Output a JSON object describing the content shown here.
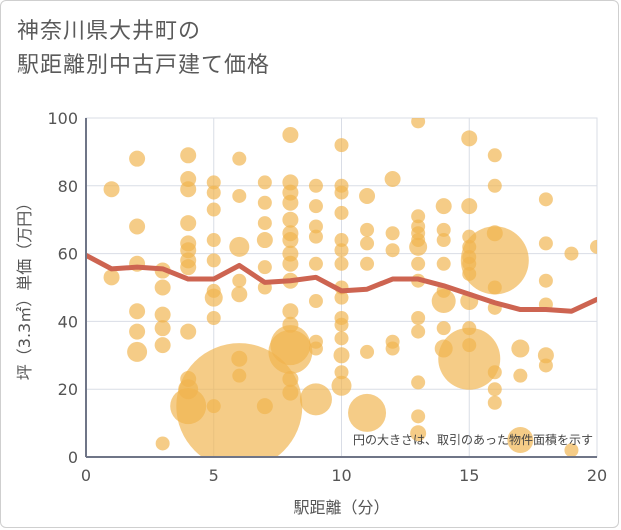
{
  "title_lines": [
    "神奈川県大井町の",
    "駅距離別中古戸建て価格"
  ],
  "note": "円の大きさは、取引のあった物件面積を示す",
  "colors": {
    "bubble": "#f0b44e",
    "line": "#cd6451",
    "grid": "#d9dde6",
    "axis": "#6f7587"
  },
  "chart_data": {
    "type": "scatter",
    "title": "神奈川県大井町の駅距離別中古戸建て価格",
    "xlabel": "駅距離（分）",
    "ylabel": "坪（3.3㎡）単価（万円）",
    "xlim": [
      0,
      20
    ],
    "ylim": [
      0,
      100
    ],
    "xticks": [
      0,
      5,
      10,
      15,
      20
    ],
    "yticks": [
      0,
      20,
      40,
      60,
      80,
      100
    ],
    "grid": true,
    "bubbles": [
      {
        "x": 1,
        "y": 79,
        "r": 8
      },
      {
        "x": 1,
        "y": 53,
        "r": 8
      },
      {
        "x": 2,
        "y": 88,
        "r": 8
      },
      {
        "x": 2,
        "y": 68,
        "r": 8
      },
      {
        "x": 2,
        "y": 57,
        "r": 8
      },
      {
        "x": 2,
        "y": 43,
        "r": 8
      },
      {
        "x": 2,
        "y": 37,
        "r": 8
      },
      {
        "x": 2,
        "y": 31,
        "r": 10
      },
      {
        "x": 3,
        "y": 55,
        "r": 8
      },
      {
        "x": 3,
        "y": 50,
        "r": 8
      },
      {
        "x": 3,
        "y": 42,
        "r": 8
      },
      {
        "x": 3,
        "y": 38,
        "r": 8
      },
      {
        "x": 3,
        "y": 33,
        "r": 8
      },
      {
        "x": 3,
        "y": 4,
        "r": 7
      },
      {
        "x": 4,
        "y": 89,
        "r": 8
      },
      {
        "x": 4,
        "y": 82,
        "r": 8
      },
      {
        "x": 4,
        "y": 79,
        "r": 8
      },
      {
        "x": 4,
        "y": 69,
        "r": 8
      },
      {
        "x": 4,
        "y": 63,
        "r": 8
      },
      {
        "x": 4,
        "y": 61,
        "r": 8
      },
      {
        "x": 4,
        "y": 58,
        "r": 8
      },
      {
        "x": 4,
        "y": 56,
        "r": 8
      },
      {
        "x": 4,
        "y": 37,
        "r": 8
      },
      {
        "x": 4,
        "y": 23,
        "r": 8
      },
      {
        "x": 4,
        "y": 20,
        "r": 10
      },
      {
        "x": 4,
        "y": 15,
        "r": 18
      },
      {
        "x": 5,
        "y": 81,
        "r": 7
      },
      {
        "x": 5,
        "y": 78,
        "r": 7
      },
      {
        "x": 5,
        "y": 73,
        "r": 7
      },
      {
        "x": 5,
        "y": 64,
        "r": 7
      },
      {
        "x": 5,
        "y": 58,
        "r": 7
      },
      {
        "x": 5,
        "y": 49,
        "r": 7
      },
      {
        "x": 5,
        "y": 47,
        "r": 9
      },
      {
        "x": 5,
        "y": 41,
        "r": 7
      },
      {
        "x": 5,
        "y": 15,
        "r": 7
      },
      {
        "x": 6,
        "y": 88,
        "r": 7
      },
      {
        "x": 6,
        "y": 77,
        "r": 7
      },
      {
        "x": 6,
        "y": 62,
        "r": 10
      },
      {
        "x": 6,
        "y": 52,
        "r": 7
      },
      {
        "x": 6,
        "y": 48,
        "r": 8
      },
      {
        "x": 6,
        "y": 29,
        "r": 8
      },
      {
        "x": 6,
        "y": 24,
        "r": 7
      },
      {
        "x": 6,
        "y": 15,
        "r": 63
      },
      {
        "x": 7,
        "y": 81,
        "r": 7
      },
      {
        "x": 7,
        "y": 75,
        "r": 7
      },
      {
        "x": 7,
        "y": 69,
        "r": 7
      },
      {
        "x": 7,
        "y": 64,
        "r": 8
      },
      {
        "x": 7,
        "y": 56,
        "r": 7
      },
      {
        "x": 7,
        "y": 50,
        "r": 7
      },
      {
        "x": 7,
        "y": 15,
        "r": 8
      },
      {
        "x": 8,
        "y": 95,
        "r": 8
      },
      {
        "x": 8,
        "y": 81,
        "r": 8
      },
      {
        "x": 8,
        "y": 78,
        "r": 8
      },
      {
        "x": 8,
        "y": 75,
        "r": 8
      },
      {
        "x": 8,
        "y": 70,
        "r": 8
      },
      {
        "x": 8,
        "y": 66,
        "r": 8
      },
      {
        "x": 8,
        "y": 64,
        "r": 8
      },
      {
        "x": 8,
        "y": 60,
        "r": 8
      },
      {
        "x": 8,
        "y": 57,
        "r": 8
      },
      {
        "x": 8,
        "y": 52,
        "r": 8
      },
      {
        "x": 8,
        "y": 43,
        "r": 8
      },
      {
        "x": 8,
        "y": 39,
        "r": 8
      },
      {
        "x": 8,
        "y": 33,
        "r": 20
      },
      {
        "x": 8,
        "y": 31,
        "r": 22
      },
      {
        "x": 8,
        "y": 23,
        "r": 8
      },
      {
        "x": 8,
        "y": 19,
        "r": 8
      },
      {
        "x": 9,
        "y": 80,
        "r": 7
      },
      {
        "x": 9,
        "y": 74,
        "r": 7
      },
      {
        "x": 9,
        "y": 68,
        "r": 7
      },
      {
        "x": 9,
        "y": 65,
        "r": 7
      },
      {
        "x": 9,
        "y": 57,
        "r": 7
      },
      {
        "x": 9,
        "y": 46,
        "r": 7
      },
      {
        "x": 9,
        "y": 34,
        "r": 7
      },
      {
        "x": 9,
        "y": 32,
        "r": 7
      },
      {
        "x": 9,
        "y": 17,
        "r": 16
      },
      {
        "x": 10,
        "y": 92,
        "r": 7
      },
      {
        "x": 10,
        "y": 80,
        "r": 7
      },
      {
        "x": 10,
        "y": 78,
        "r": 7
      },
      {
        "x": 10,
        "y": 72,
        "r": 7
      },
      {
        "x": 10,
        "y": 64,
        "r": 7
      },
      {
        "x": 10,
        "y": 61,
        "r": 7
      },
      {
        "x": 10,
        "y": 57,
        "r": 7
      },
      {
        "x": 10,
        "y": 50,
        "r": 7
      },
      {
        "x": 10,
        "y": 47,
        "r": 7
      },
      {
        "x": 10,
        "y": 41,
        "r": 7
      },
      {
        "x": 10,
        "y": 39,
        "r": 7
      },
      {
        "x": 10,
        "y": 35,
        "r": 7
      },
      {
        "x": 10,
        "y": 30,
        "r": 8
      },
      {
        "x": 10,
        "y": 25,
        "r": 7
      },
      {
        "x": 10,
        "y": 21,
        "r": 10
      },
      {
        "x": 11,
        "y": 77,
        "r": 8
      },
      {
        "x": 11,
        "y": 67,
        "r": 7
      },
      {
        "x": 11,
        "y": 63,
        "r": 7
      },
      {
        "x": 11,
        "y": 57,
        "r": 7
      },
      {
        "x": 11,
        "y": 31,
        "r": 7
      },
      {
        "x": 11,
        "y": 13,
        "r": 19
      },
      {
        "x": 12,
        "y": 82,
        "r": 8
      },
      {
        "x": 12,
        "y": 66,
        "r": 7
      },
      {
        "x": 12,
        "y": 61,
        "r": 7
      },
      {
        "x": 12,
        "y": 34,
        "r": 7
      },
      {
        "x": 12,
        "y": 32,
        "r": 7
      },
      {
        "x": 13,
        "y": 99,
        "r": 7
      },
      {
        "x": 13,
        "y": 71,
        "r": 7
      },
      {
        "x": 13,
        "y": 68,
        "r": 7
      },
      {
        "x": 13,
        "y": 66,
        "r": 7
      },
      {
        "x": 13,
        "y": 64,
        "r": 7
      },
      {
        "x": 13,
        "y": 62,
        "r": 9
      },
      {
        "x": 13,
        "y": 57,
        "r": 7
      },
      {
        "x": 13,
        "y": 52,
        "r": 7
      },
      {
        "x": 13,
        "y": 41,
        "r": 7
      },
      {
        "x": 13,
        "y": 37,
        "r": 7
      },
      {
        "x": 13,
        "y": 22,
        "r": 7
      },
      {
        "x": 13,
        "y": 12,
        "r": 7
      },
      {
        "x": 13,
        "y": 7,
        "r": 8
      },
      {
        "x": 14,
        "y": 74,
        "r": 8
      },
      {
        "x": 14,
        "y": 67,
        "r": 7
      },
      {
        "x": 14,
        "y": 64,
        "r": 7
      },
      {
        "x": 14,
        "y": 57,
        "r": 7
      },
      {
        "x": 14,
        "y": 49,
        "r": 7
      },
      {
        "x": 14,
        "y": 46,
        "r": 12
      },
      {
        "x": 14,
        "y": 38,
        "r": 7
      },
      {
        "x": 14,
        "y": 32,
        "r": 9
      },
      {
        "x": 15,
        "y": 94,
        "r": 8
      },
      {
        "x": 15,
        "y": 74,
        "r": 8
      },
      {
        "x": 15,
        "y": 65,
        "r": 7
      },
      {
        "x": 15,
        "y": 62,
        "r": 7
      },
      {
        "x": 15,
        "y": 59,
        "r": 7
      },
      {
        "x": 15,
        "y": 57,
        "r": 7
      },
      {
        "x": 15,
        "y": 54,
        "r": 7
      },
      {
        "x": 15,
        "y": 46,
        "r": 9
      },
      {
        "x": 15,
        "y": 38,
        "r": 7
      },
      {
        "x": 15,
        "y": 33,
        "r": 7
      },
      {
        "x": 15,
        "y": 29,
        "r": 31
      },
      {
        "x": 16,
        "y": 89,
        "r": 7
      },
      {
        "x": 16,
        "y": 80,
        "r": 7
      },
      {
        "x": 16,
        "y": 66,
        "r": 8
      },
      {
        "x": 16,
        "y": 58,
        "r": 34
      },
      {
        "x": 16,
        "y": 50,
        "r": 7
      },
      {
        "x": 16,
        "y": 44,
        "r": 7
      },
      {
        "x": 16,
        "y": 25,
        "r": 7
      },
      {
        "x": 16,
        "y": 20,
        "r": 7
      },
      {
        "x": 16,
        "y": 16,
        "r": 7
      },
      {
        "x": 17,
        "y": 32,
        "r": 9
      },
      {
        "x": 17,
        "y": 24,
        "r": 7
      },
      {
        "x": 17,
        "y": 5,
        "r": 13
      },
      {
        "x": 18,
        "y": 76,
        "r": 7
      },
      {
        "x": 18,
        "y": 63,
        "r": 7
      },
      {
        "x": 18,
        "y": 52,
        "r": 7
      },
      {
        "x": 18,
        "y": 45,
        "r": 7
      },
      {
        "x": 18,
        "y": 30,
        "r": 8
      },
      {
        "x": 18,
        "y": 27,
        "r": 7
      },
      {
        "x": 19,
        "y": 60,
        "r": 7
      },
      {
        "x": 19,
        "y": 2,
        "r": 7
      },
      {
        "x": 20,
        "y": 62,
        "r": 7
      }
    ],
    "series": [
      {
        "type": "line",
        "x": [
          0,
          1,
          2,
          3,
          4,
          5,
          6,
          7,
          8,
          9,
          10,
          11,
          12,
          13,
          14,
          15,
          16,
          17,
          18,
          19,
          20
        ],
        "values": [
          59.5,
          55.5,
          56,
          55.5,
          52.5,
          52.5,
          56.5,
          51.5,
          52,
          53,
          49,
          49.5,
          52.5,
          52.5,
          50.5,
          48,
          45.5,
          43.5,
          43.5,
          43,
          46.5
        ]
      }
    ]
  }
}
